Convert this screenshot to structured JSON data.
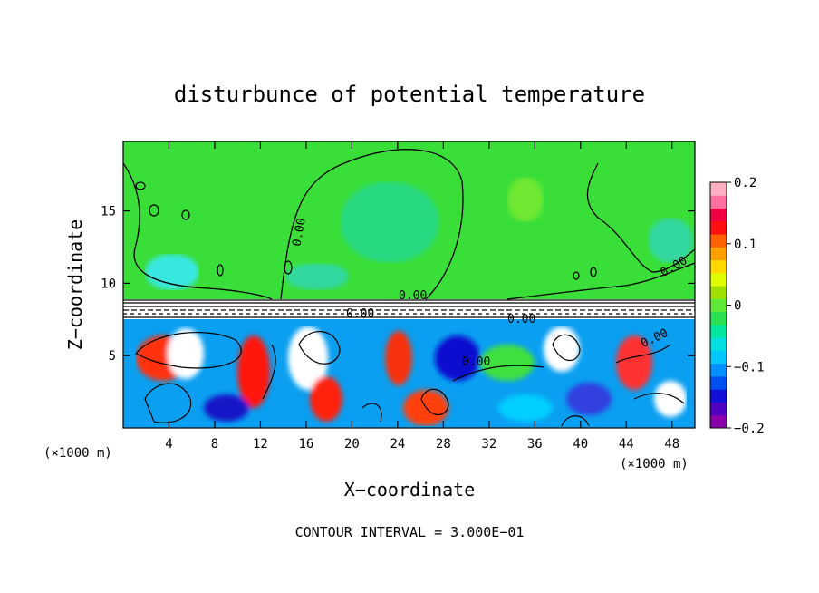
{
  "chart_data": {
    "type": "heatmap",
    "title": "disturbunce of potential temperature",
    "xlabel": "X−coordinate",
    "ylabel": "Z−coordinate",
    "x_unit_left": "(×1000 m)",
    "x_unit_right": "(×1000 m)",
    "xlim": [
      0,
      50
    ],
    "ylim": [
      0,
      19.8
    ],
    "x_ticks": [
      4,
      8,
      12,
      16,
      20,
      24,
      28,
      32,
      36,
      40,
      44,
      48
    ],
    "y_ticks": [
      5,
      10,
      15
    ],
    "colorbar": {
      "min": -0.2,
      "max": 0.2,
      "ticks": [
        0.2,
        0.1,
        0,
        -0.1,
        -0.2
      ],
      "tick_labels": [
        "0.2",
        "0.1",
        "0",
        "−0.1",
        "−0.2"
      ],
      "colors": [
        "#8a00a8",
        "#5000c0",
        "#1010d8",
        "#0050f0",
        "#0090ff",
        "#00c8ff",
        "#00e0e0",
        "#00e8a0",
        "#28e050",
        "#60e838",
        "#a0e000",
        "#e0ff00",
        "#ffd800",
        "#ffa000",
        "#ff6000",
        "#ff1010",
        "#f00040",
        "#ff70a0",
        "#ffb0c0"
      ]
    },
    "contour_labels": [
      "0.00",
      "0.00",
      "0.00",
      "0.00",
      "0.00",
      "0.00",
      "0.00"
    ],
    "footer": "CONTOUR INTERVAL = 3.000E−01"
  }
}
